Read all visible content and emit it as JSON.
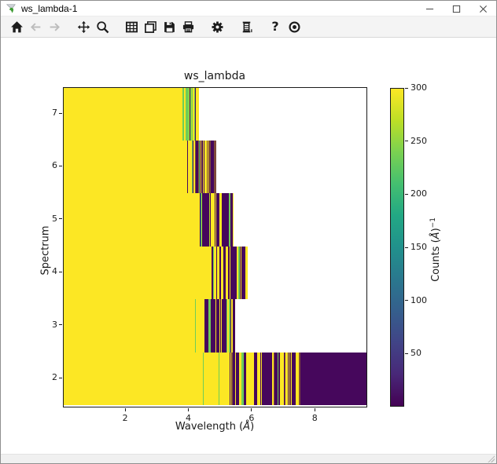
{
  "window": {
    "title": "ws_lambda-1"
  },
  "toolbar": {
    "items": [
      {
        "icon": "home",
        "name": "home",
        "enabled": true,
        "group": false
      },
      {
        "icon": "back",
        "name": "back",
        "enabled": false,
        "group": false
      },
      {
        "icon": "forward",
        "name": "forward",
        "enabled": false,
        "group": false
      },
      {
        "icon": "pan",
        "name": "pan",
        "enabled": true,
        "group": true
      },
      {
        "icon": "zoom",
        "name": "zoom-to-rectangle",
        "enabled": true,
        "group": false
      },
      {
        "icon": "grid",
        "name": "grid-toggle",
        "enabled": true,
        "group": true
      },
      {
        "icon": "copy",
        "name": "copy-figure",
        "enabled": true,
        "group": false
      },
      {
        "icon": "save",
        "name": "save-figure",
        "enabled": true,
        "group": false
      },
      {
        "icon": "print",
        "name": "print-figure",
        "enabled": true,
        "group": false
      },
      {
        "icon": "gear",
        "name": "customize",
        "enabled": true,
        "group": true
      },
      {
        "icon": "fit",
        "name": "fit",
        "enabled": true,
        "group": true
      },
      {
        "icon": "help",
        "name": "help",
        "glyph": "?",
        "enabled": true,
        "group": true
      },
      {
        "icon": "eye",
        "name": "observe",
        "enabled": true,
        "group": false
      }
    ]
  },
  "chart_data": {
    "type": "heatmap",
    "title": "ws_lambda",
    "xlabel": {
      "prefix": "Wavelength (",
      "unit": "Å",
      "suffix": ")"
    },
    "ylabel": "Spectrum",
    "x_range": [
      0.03,
      9.66
    ],
    "x_ticks": [
      2,
      4,
      6,
      8
    ],
    "y_range": [
      1.44,
      7.49
    ],
    "y_ticks": [
      2,
      3,
      4,
      5,
      6,
      7
    ],
    "colorbar": {
      "label_prefix": "Counts (",
      "label_unit": "Å",
      "label_suffix": ")",
      "label_exponent": "−1",
      "range": [
        0,
        300
      ],
      "ticks": [
        50,
        100,
        150,
        200,
        250,
        300
      ],
      "colormap": "viridis",
      "gradient_top_to_bottom": [
        "#fde725",
        "#bddf26",
        "#7ad151",
        "#44bf70",
        "#22a884",
        "#21918c",
        "#2a788e",
        "#355f8d",
        "#414487",
        "#482878",
        "#440154"
      ]
    },
    "colors": {
      "saturated": "#fce724",
      "low": "#46075c",
      "accent_green": "#6ece58"
    },
    "rows": [
      {
        "spectrum": 7,
        "seed": 71,
        "solids": [
          {
            "from": 0.03,
            "to": 3.79,
            "color": "#fce724"
          }
        ],
        "zones": [
          {
            "from": 3.79,
            "to": 4.29,
            "mix": [
              [
                "#fce724",
                0.42
              ],
              [
                "#6ece58",
                0.3
              ],
              [
                "#b5de2b",
                0.14
              ],
              [
                "#46075c",
                0.14
              ]
            ]
          }
        ]
      },
      {
        "spectrum": 6,
        "seed": 62,
        "solids": [
          {
            "from": 0.03,
            "to": 3.86,
            "color": "#fce724"
          }
        ],
        "zones": [
          {
            "from": 3.86,
            "to": 4.58,
            "mix": [
              [
                "#fce724",
                0.4
              ],
              [
                "#6ece58",
                0.12
              ],
              [
                "#b5de2b",
                0.08
              ],
              [
                "#46075c",
                0.32
              ],
              [
                "#7e4a3a",
                0.08
              ]
            ]
          },
          {
            "from": 4.58,
            "to": 4.86,
            "mix": [
              [
                "#fce724",
                0.1
              ],
              [
                "#7e4a3a",
                0.34
              ],
              [
                "#46075c",
                0.5
              ],
              [
                "#440154",
                0.06
              ]
            ]
          }
        ]
      },
      {
        "spectrum": 5,
        "seed": 53,
        "solids": [
          {
            "from": 0.03,
            "to": 4.34,
            "color": "#fce724"
          }
        ],
        "zones": [
          {
            "from": 4.34,
            "to": 5.41,
            "mix": [
              [
                "#fce724",
                0.4
              ],
              [
                "#6ece58",
                0.1
              ],
              [
                "#b5de2b",
                0.06
              ],
              [
                "#46075c",
                0.4
              ],
              [
                "#21918c",
                0.04
              ]
            ]
          }
        ]
      },
      {
        "spectrum": 4,
        "seed": 44,
        "solids": [
          {
            "from": 0.03,
            "to": 4.66,
            "color": "#fce724"
          }
        ],
        "zones": [
          {
            "from": 4.66,
            "to": 5.28,
            "mix": [
              [
                "#fce724",
                0.36
              ],
              [
                "#6ece58",
                0.1
              ],
              [
                "#46075c",
                0.54
              ]
            ]
          },
          {
            "from": 5.28,
            "to": 5.85,
            "mix": [
              [
                "#fce724",
                0.2
              ],
              [
                "#6ece58",
                0.04
              ],
              [
                "#46075c",
                0.7
              ],
              [
                "#440154",
                0.06
              ]
            ]
          }
        ]
      },
      {
        "spectrum": 3,
        "seed": 35,
        "solids": [
          {
            "from": 0.03,
            "to": 4.19,
            "color": "#fce724"
          },
          {
            "from": 4.19,
            "to": 4.22,
            "color": "#6ece58"
          },
          {
            "from": 4.22,
            "to": 4.49,
            "color": "#fce724"
          }
        ],
        "zones": [
          {
            "from": 4.49,
            "to": 5.46,
            "mix": [
              [
                "#fce724",
                0.18
              ],
              [
                "#6ece58",
                0.1
              ],
              [
                "#46075c",
                0.66
              ],
              [
                "#440154",
                0.06
              ]
            ]
          }
        ]
      },
      {
        "spectrum": 2,
        "seed": 26,
        "solids": [
          {
            "from": 0.03,
            "to": 4.43,
            "color": "#fce724"
          },
          {
            "from": 4.43,
            "to": 4.46,
            "color": "#6ece58"
          },
          {
            "from": 4.46,
            "to": 4.93,
            "color": "#fce724"
          },
          {
            "from": 4.93,
            "to": 4.96,
            "color": "#6ece58"
          },
          {
            "from": 4.96,
            "to": 5.28,
            "color": "#fce724"
          },
          {
            "from": 7.55,
            "to": 9.66,
            "color": "#46075c"
          }
        ],
        "zones": [
          {
            "from": 5.28,
            "to": 6.28,
            "mix": [
              [
                "#fce724",
                0.55
              ],
              [
                "#6ece58",
                0.03
              ],
              [
                "#46075c",
                0.38
              ],
              [
                "#7e4a3a",
                0.04
              ]
            ]
          },
          {
            "from": 6.28,
            "to": 7.55,
            "mix": [
              [
                "#fce724",
                0.32
              ],
              [
                "#6ece58",
                0.02
              ],
              [
                "#46075c",
                0.56
              ],
              [
                "#7e4a3a",
                0.1
              ]
            ]
          }
        ]
      }
    ]
  }
}
